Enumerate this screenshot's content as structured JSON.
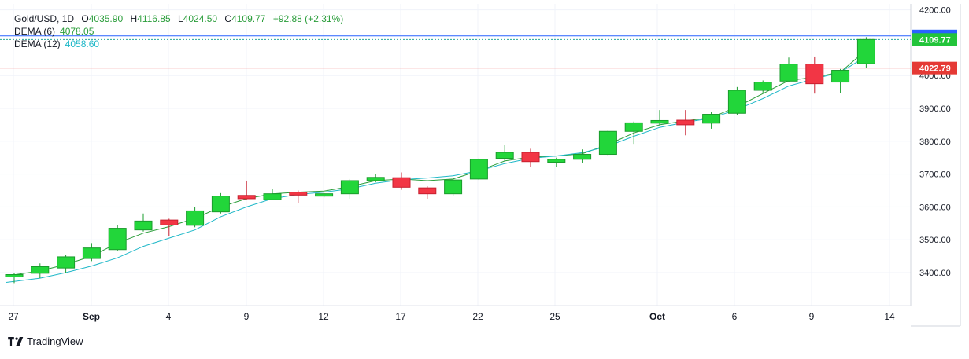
{
  "header": {
    "symbol": "Gold/USD",
    "interval": "1D",
    "open_label": "O",
    "open": "4035.90",
    "high_label": "H",
    "high": "4116.85",
    "low_label": "L",
    "low": "4024.50",
    "close_label": "C",
    "close": "4109.77",
    "change": "+92.88 (+2.31%)"
  },
  "indicators": [
    {
      "label": "DEMA (6)",
      "value": "4078.05",
      "color": "#2a9d3a"
    },
    {
      "label": "DEMA (12)",
      "value": "4058.60",
      "color": "#1fb8c8"
    }
  ],
  "brand": {
    "name": "TradingView",
    "logo_icon": "tradingview-logo-icon"
  },
  "colors": {
    "up": "#22d63a",
    "down": "#f23645",
    "up_border": "#1a9c2c",
    "down_border": "#c81f2f",
    "last_price": "#22c43a",
    "dema_line_price": "#2962ff",
    "support": "#e53935"
  },
  "chart_data": {
    "type": "candlestick",
    "x_tick_labels": [
      "27",
      "Sep",
      "4",
      "9",
      "12",
      "17",
      "22",
      "25",
      "Oct",
      "6",
      "9",
      "14"
    ],
    "y_tick_labels": [
      "4200.00",
      "4000.00",
      "3900.00",
      "3800.00",
      "3700.00",
      "3600.00",
      "3500.00",
      "3400.00"
    ],
    "ylim": [
      3290,
      4220
    ],
    "grid": true,
    "candles": [
      {
        "o": 3388,
        "h": 3398,
        "l": 3368,
        "c": 3394
      },
      {
        "o": 3398,
        "h": 3428,
        "l": 3383,
        "c": 3418
      },
      {
        "o": 3414,
        "h": 3455,
        "l": 3398,
        "c": 3448
      },
      {
        "o": 3443,
        "h": 3490,
        "l": 3435,
        "c": 3475
      },
      {
        "o": 3470,
        "h": 3545,
        "l": 3465,
        "c": 3535
      },
      {
        "o": 3530,
        "h": 3580,
        "l": 3525,
        "c": 3557
      },
      {
        "o": 3560,
        "h": 3564,
        "l": 3512,
        "c": 3545
      },
      {
        "o": 3544,
        "h": 3600,
        "l": 3538,
        "c": 3588
      },
      {
        "o": 3585,
        "h": 3642,
        "l": 3580,
        "c": 3633
      },
      {
        "o": 3635,
        "h": 3680,
        "l": 3622,
        "c": 3625
      },
      {
        "o": 3622,
        "h": 3655,
        "l": 3620,
        "c": 3640
      },
      {
        "o": 3645,
        "h": 3650,
        "l": 3612,
        "c": 3636
      },
      {
        "o": 3633,
        "h": 3642,
        "l": 3629,
        "c": 3640
      },
      {
        "o": 3640,
        "h": 3685,
        "l": 3625,
        "c": 3680
      },
      {
        "o": 3680,
        "h": 3700,
        "l": 3675,
        "c": 3690
      },
      {
        "o": 3689,
        "h": 3705,
        "l": 3652,
        "c": 3660
      },
      {
        "o": 3658,
        "h": 3663,
        "l": 3625,
        "c": 3640
      },
      {
        "o": 3640,
        "h": 3685,
        "l": 3632,
        "c": 3682
      },
      {
        "o": 3685,
        "h": 3748,
        "l": 3682,
        "c": 3745
      },
      {
        "o": 3748,
        "h": 3790,
        "l": 3740,
        "c": 3766
      },
      {
        "o": 3766,
        "h": 3777,
        "l": 3722,
        "c": 3738
      },
      {
        "o": 3736,
        "h": 3750,
        "l": 3722,
        "c": 3745
      },
      {
        "o": 3745,
        "h": 3775,
        "l": 3735,
        "c": 3760
      },
      {
        "o": 3760,
        "h": 3835,
        "l": 3755,
        "c": 3830
      },
      {
        "o": 3830,
        "h": 3860,
        "l": 3792,
        "c": 3856
      },
      {
        "o": 3855,
        "h": 3895,
        "l": 3848,
        "c": 3863
      },
      {
        "o": 3864,
        "h": 3895,
        "l": 3818,
        "c": 3850
      },
      {
        "o": 3855,
        "h": 3890,
        "l": 3838,
        "c": 3882
      },
      {
        "o": 3885,
        "h": 3965,
        "l": 3880,
        "c": 3955
      },
      {
        "o": 3955,
        "h": 3985,
        "l": 3947,
        "c": 3980
      },
      {
        "o": 3983,
        "h": 4055,
        "l": 3980,
        "c": 4035
      },
      {
        "o": 4035,
        "h": 4058,
        "l": 3945,
        "c": 3975
      },
      {
        "o": 3980,
        "h": 4020,
        "l": 3947,
        "c": 4016
      },
      {
        "o": 4035.9,
        "h": 4116.85,
        "l": 4024.5,
        "c": 4109.77
      }
    ],
    "series": [
      {
        "name": "DEMA (6)",
        "values": [
          3390,
          3405,
          3425,
          3450,
          3490,
          3520,
          3540,
          3565,
          3600,
          3625,
          3640,
          3645,
          3648,
          3662,
          3680,
          3685,
          3680,
          3685,
          3710,
          3740,
          3752,
          3755,
          3762,
          3790,
          3825,
          3850,
          3862,
          3872,
          3905,
          3945,
          3985,
          3995,
          4010,
          4078.05
        ]
      },
      {
        "name": "DEMA (12)",
        "values": [
          3370,
          3383,
          3400,
          3420,
          3445,
          3480,
          3505,
          3530,
          3570,
          3600,
          3625,
          3638,
          3645,
          3655,
          3672,
          3683,
          3688,
          3695,
          3710,
          3732,
          3748,
          3755,
          3765,
          3785,
          3815,
          3842,
          3858,
          3870,
          3897,
          3930,
          3968,
          3990,
          4010,
          4058.6
        ]
      }
    ],
    "price_labels": {
      "dema_price": "4120.55",
      "last_price": "4109.77",
      "support_price": "4022.79"
    },
    "price_levels": {
      "dema_price": 4120.55,
      "last_price": 4109.77,
      "support_price": 4022.79
    }
  }
}
